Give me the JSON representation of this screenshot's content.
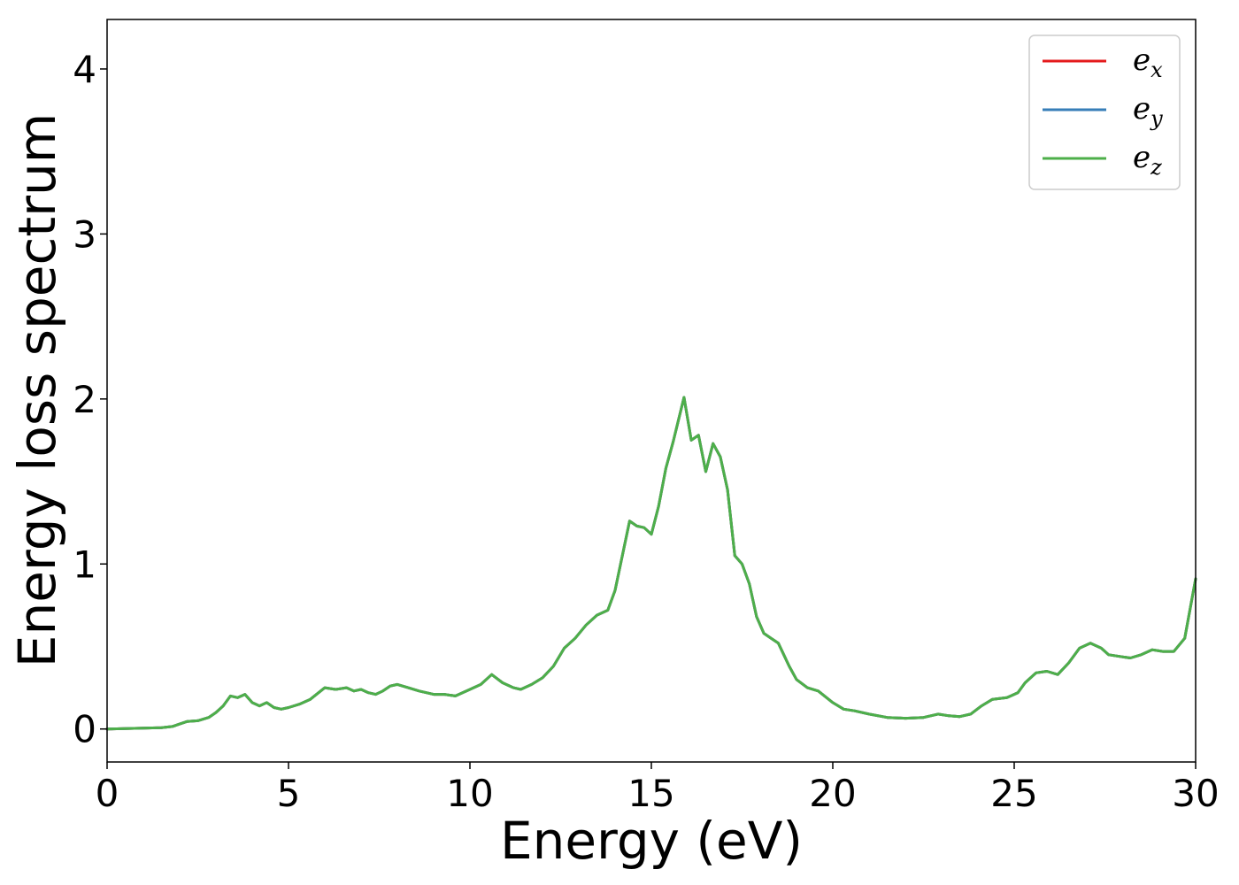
{
  "chart_data": {
    "type": "line",
    "title": "",
    "xlabel": "Energy (eV)",
    "ylabel": "Energy loss spectrum",
    "xlim": [
      0,
      30
    ],
    "ylim": [
      -0.2,
      4.3
    ],
    "xticks": [
      0,
      5,
      10,
      15,
      20,
      25,
      30
    ],
    "yticks": [
      0,
      1,
      2,
      3,
      4
    ],
    "grid": false,
    "legend_position": "top-right",
    "x": [
      0,
      0.5,
      1.0,
      1.5,
      1.8,
      2.0,
      2.2,
      2.5,
      2.8,
      3.0,
      3.2,
      3.4,
      3.6,
      3.8,
      4.0,
      4.2,
      4.4,
      4.6,
      4.8,
      5.0,
      5.3,
      5.6,
      6.0,
      6.3,
      6.6,
      6.8,
      7.0,
      7.2,
      7.4,
      7.6,
      7.8,
      8.0,
      8.3,
      8.6,
      9.0,
      9.3,
      9.6,
      10.0,
      10.3,
      10.6,
      10.9,
      11.2,
      11.4,
      11.7,
      12.0,
      12.3,
      12.6,
      12.9,
      13.2,
      13.5,
      13.8,
      14.0,
      14.2,
      14.4,
      14.6,
      14.8,
      15.0,
      15.2,
      15.4,
      15.6,
      15.9,
      16.1,
      16.3,
      16.5,
      16.7,
      16.9,
      17.1,
      17.3,
      17.5,
      17.7,
      17.9,
      18.1,
      18.3,
      18.5,
      18.8,
      19.0,
      19.3,
      19.6,
      20.0,
      20.3,
      20.6,
      21.0,
      21.5,
      22.0,
      22.5,
      22.9,
      23.2,
      23.5,
      23.8,
      24.1,
      24.4,
      24.8,
      25.1,
      25.3,
      25.6,
      25.9,
      26.2,
      26.5,
      26.8,
      27.1,
      27.4,
      27.6,
      27.9,
      28.2,
      28.5,
      28.8,
      29.1,
      29.4,
      29.7,
      30.0
    ],
    "series": [
      {
        "name": "e_x",
        "color": "#e41a1c",
        "values": [
          0,
          0.002,
          0.005,
          0.008,
          0.015,
          0.03,
          0.045,
          0.05,
          0.07,
          0.1,
          0.14,
          0.2,
          0.19,
          0.21,
          0.16,
          0.14,
          0.16,
          0.13,
          0.12,
          0.13,
          0.15,
          0.18,
          0.25,
          0.24,
          0.25,
          0.23,
          0.24,
          0.22,
          0.21,
          0.23,
          0.26,
          0.27,
          0.25,
          0.23,
          0.21,
          0.21,
          0.2,
          0.24,
          0.27,
          0.33,
          0.28,
          0.25,
          0.24,
          0.27,
          0.31,
          0.38,
          0.49,
          0.55,
          0.63,
          0.69,
          0.72,
          0.84,
          1.05,
          1.26,
          1.23,
          1.22,
          1.18,
          1.35,
          1.58,
          1.74,
          2.01,
          1.75,
          1.78,
          1.56,
          1.73,
          1.65,
          1.45,
          1.05,
          1.0,
          0.88,
          0.68,
          0.58,
          0.55,
          0.52,
          0.38,
          0.3,
          0.25,
          0.23,
          0.16,
          0.12,
          0.11,
          0.09,
          0.07,
          0.065,
          0.07,
          0.09,
          0.08,
          0.075,
          0.09,
          0.14,
          0.18,
          0.19,
          0.22,
          0.28,
          0.34,
          0.35,
          0.33,
          0.4,
          0.49,
          0.52,
          0.49,
          0.45,
          0.44,
          0.43,
          0.45,
          0.48,
          0.47,
          0.47,
          0.55,
          0.91
        ]
      },
      {
        "name": "e_y",
        "color": "#377eb8",
        "values": [
          0,
          0.002,
          0.005,
          0.008,
          0.015,
          0.03,
          0.045,
          0.05,
          0.07,
          0.1,
          0.14,
          0.2,
          0.19,
          0.21,
          0.16,
          0.14,
          0.16,
          0.13,
          0.12,
          0.13,
          0.15,
          0.18,
          0.25,
          0.24,
          0.25,
          0.23,
          0.24,
          0.22,
          0.21,
          0.23,
          0.26,
          0.27,
          0.25,
          0.23,
          0.21,
          0.21,
          0.2,
          0.24,
          0.27,
          0.33,
          0.28,
          0.25,
          0.24,
          0.27,
          0.31,
          0.38,
          0.49,
          0.55,
          0.63,
          0.69,
          0.72,
          0.84,
          1.05,
          1.26,
          1.23,
          1.22,
          1.18,
          1.35,
          1.58,
          1.74,
          2.01,
          1.75,
          1.78,
          1.56,
          1.73,
          1.65,
          1.45,
          1.05,
          1.0,
          0.88,
          0.68,
          0.58,
          0.55,
          0.52,
          0.38,
          0.3,
          0.25,
          0.23,
          0.16,
          0.12,
          0.11,
          0.09,
          0.07,
          0.065,
          0.07,
          0.09,
          0.08,
          0.075,
          0.09,
          0.14,
          0.18,
          0.19,
          0.22,
          0.28,
          0.34,
          0.35,
          0.33,
          0.4,
          0.49,
          0.52,
          0.49,
          0.45,
          0.44,
          0.43,
          0.45,
          0.48,
          0.47,
          0.47,
          0.55,
          0.91
        ]
      },
      {
        "name": "e_z",
        "color": "#4daf4a",
        "values": [
          0,
          0.002,
          0.005,
          0.008,
          0.015,
          0.03,
          0.045,
          0.05,
          0.07,
          0.1,
          0.14,
          0.2,
          0.19,
          0.21,
          0.16,
          0.14,
          0.16,
          0.13,
          0.12,
          0.13,
          0.15,
          0.18,
          0.25,
          0.24,
          0.25,
          0.23,
          0.24,
          0.22,
          0.21,
          0.23,
          0.26,
          0.27,
          0.25,
          0.23,
          0.21,
          0.21,
          0.2,
          0.24,
          0.27,
          0.33,
          0.28,
          0.25,
          0.24,
          0.27,
          0.31,
          0.38,
          0.49,
          0.55,
          0.63,
          0.69,
          0.72,
          0.84,
          1.05,
          1.26,
          1.23,
          1.22,
          1.18,
          1.35,
          1.58,
          1.74,
          2.01,
          1.75,
          1.78,
          1.56,
          1.73,
          1.65,
          1.45,
          1.05,
          1.0,
          0.88,
          0.68,
          0.58,
          0.55,
          0.52,
          0.38,
          0.3,
          0.25,
          0.23,
          0.16,
          0.12,
          0.11,
          0.09,
          0.07,
          0.065,
          0.07,
          0.09,
          0.08,
          0.075,
          0.09,
          0.14,
          0.18,
          0.19,
          0.22,
          0.28,
          0.34,
          0.35,
          0.33,
          0.4,
          0.49,
          0.52,
          0.49,
          0.45,
          0.44,
          0.43,
          0.45,
          0.48,
          0.47,
          0.47,
          0.55,
          0.91
        ]
      }
    ],
    "legend": [
      {
        "base": "e",
        "sub": "x",
        "color": "#e41a1c"
      },
      {
        "base": "e",
        "sub": "y",
        "color": "#377eb8"
      },
      {
        "base": "e",
        "sub": "z",
        "color": "#4daf4a"
      }
    ]
  }
}
